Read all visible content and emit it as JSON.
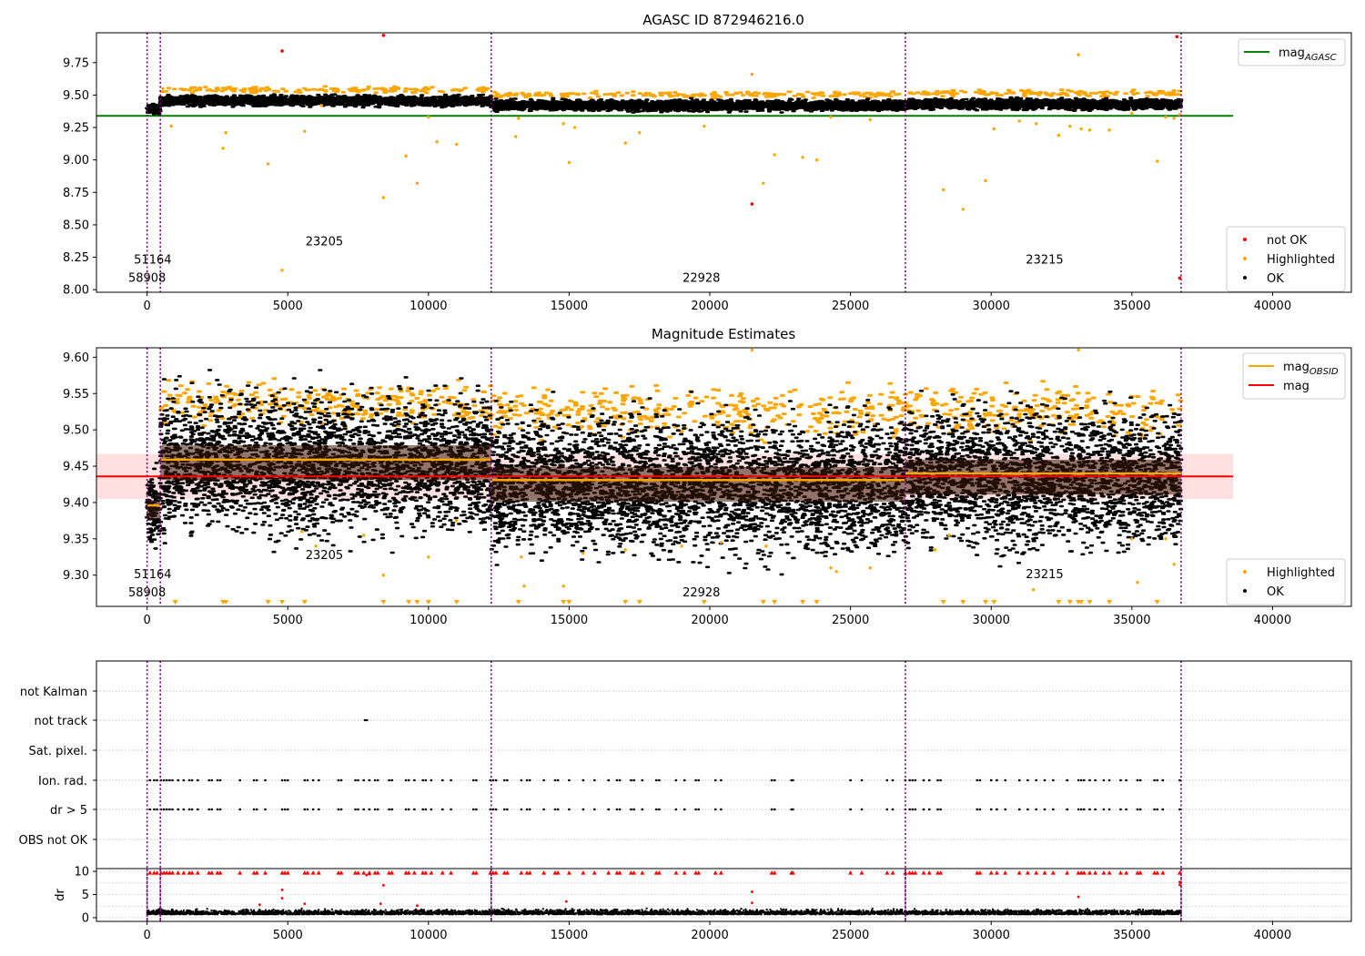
{
  "figure": {
    "title": "AGASC ID 872946216.0"
  },
  "colors": {
    "ok": "#000000",
    "highlighted": "#ffa500",
    "not_ok": "#ff0000",
    "agasc_line": "#008000",
    "mag_line": "#ff0000",
    "obsid_line": "#ffa500",
    "band": "#ffcccc",
    "obs_vline": "#800080",
    "grid": "#b0b0b0"
  },
  "chart_data": [
    {
      "id": "top",
      "type": "scatter",
      "title": "AGASC ID 872946216.0",
      "xlim": [
        -1800,
        42800
      ],
      "ylim": [
        7.98,
        9.98
      ],
      "xticks": [
        0,
        5000,
        10000,
        15000,
        20000,
        25000,
        30000,
        35000,
        40000
      ],
      "yticks": [
        8.0,
        8.25,
        8.5,
        8.75,
        9.0,
        9.25,
        9.5,
        9.75
      ],
      "ytick_labels": [
        "8.00",
        "8.25",
        "8.50",
        "8.75",
        "9.00",
        "9.25",
        "9.50",
        "9.75"
      ],
      "obs_boundaries": [
        0,
        470,
        12230,
        26950,
        36750
      ],
      "obsid_labels": [
        {
          "text": "51164",
          "x": 200,
          "y": 8.2
        },
        {
          "text": "58908",
          "x": 0,
          "y": 8.06
        },
        {
          "text": "23205",
          "x": 6300,
          "y": 8.34
        },
        {
          "text": "22928",
          "x": 19700,
          "y": 8.06
        },
        {
          "text": "23215",
          "x": 31900,
          "y": 8.2
        }
      ],
      "mag_agasc": {
        "value": 9.34,
        "x_range": [
          -1800,
          38600
        ]
      },
      "ok_band": [
        {
          "x0": 0,
          "x1": 470,
          "center": 9.39,
          "spread": 0.03
        },
        {
          "x0": 470,
          "x1": 12230,
          "center": 9.455,
          "spread": 0.035
        },
        {
          "x0": 12230,
          "x1": 26950,
          "center": 9.42,
          "spread": 0.035
        },
        {
          "x0": 26950,
          "x1": 36750,
          "center": 9.43,
          "spread": 0.035
        }
      ],
      "highlighted_points": [
        [
          560,
          9.55
        ],
        [
          860,
          9.26
        ],
        [
          2700,
          9.09
        ],
        [
          2800,
          9.21
        ],
        [
          4300,
          8.97
        ],
        [
          4800,
          8.15
        ],
        [
          5600,
          9.22
        ],
        [
          6200,
          9.42
        ],
        [
          8400,
          8.71
        ],
        [
          9200,
          9.03
        ],
        [
          9600,
          8.82
        ],
        [
          10000,
          9.33
        ],
        [
          10300,
          9.14
        ],
        [
          11000,
          9.12
        ],
        [
          13100,
          9.18
        ],
        [
          13200,
          9.32
        ],
        [
          14800,
          9.28
        ],
        [
          15000,
          8.98
        ],
        [
          15200,
          9.25
        ],
        [
          17000,
          9.13
        ],
        [
          17500,
          9.21
        ],
        [
          19800,
          9.26
        ],
        [
          21500,
          9.66
        ],
        [
          21900,
          8.82
        ],
        [
          22300,
          9.04
        ],
        [
          23300,
          9.02
        ],
        [
          23800,
          9.0
        ],
        [
          24300,
          9.33
        ],
        [
          25700,
          9.31
        ],
        [
          28300,
          8.77
        ],
        [
          29000,
          8.62
        ],
        [
          29800,
          8.84
        ],
        [
          30100,
          9.24
        ],
        [
          31000,
          9.3
        ],
        [
          31600,
          9.28
        ],
        [
          32400,
          9.19
        ],
        [
          32800,
          9.26
        ],
        [
          33100,
          9.81
        ],
        [
          33200,
          9.24
        ],
        [
          33500,
          9.23
        ],
        [
          34200,
          9.23
        ],
        [
          35000,
          9.36
        ],
        [
          35900,
          8.99
        ],
        [
          36200,
          9.33
        ],
        [
          36500,
          9.32
        ],
        [
          36700,
          9.35
        ]
      ],
      "not_ok_points": [
        [
          4800,
          9.84
        ],
        [
          8400,
          9.96
        ],
        [
          21500,
          8.66
        ],
        [
          36600,
          9.95
        ],
        [
          36700,
          8.09
        ]
      ],
      "legends": [
        {
          "position": "upper-right",
          "entries": [
            {
              "label": "mag",
              "sub": "AGASC",
              "marker": "line",
              "color": "#008000"
            }
          ]
        },
        {
          "position": "lower-right",
          "entries": [
            {
              "label": "not OK",
              "marker": "dot",
              "color": "#ff0000"
            },
            {
              "label": "Highlighted",
              "marker": "dot",
              "color": "#ffa500"
            },
            {
              "label": "OK",
              "marker": "dot",
              "color": "#000000"
            }
          ]
        }
      ]
    },
    {
      "id": "middle",
      "type": "scatter",
      "title": "Magnitude Estimates",
      "xlim": [
        -1800,
        42800
      ],
      "ylim": [
        9.257,
        9.613
      ],
      "xticks": [
        0,
        5000,
        10000,
        15000,
        20000,
        25000,
        30000,
        35000,
        40000
      ],
      "yticks": [
        9.3,
        9.35,
        9.4,
        9.45,
        9.5,
        9.55,
        9.6
      ],
      "ytick_labels": [
        "9.30",
        "9.35",
        "9.40",
        "9.45",
        "9.50",
        "9.55",
        "9.60"
      ],
      "obs_boundaries": [
        0,
        470,
        12230,
        26950,
        36750
      ],
      "obsid_labels": [
        {
          "text": "51164",
          "x": 200,
          "y": 9.296
        },
        {
          "text": "58908",
          "x": 0,
          "y": 9.271
        },
        {
          "text": "23205",
          "x": 6300,
          "y": 9.322
        },
        {
          "text": "22928",
          "x": 19700,
          "y": 9.271
        },
        {
          "text": "23215",
          "x": 31900,
          "y": 9.296
        }
      ],
      "mag": {
        "value": 9.436,
        "x_range": [
          -1800,
          38600
        ],
        "band": [
          9.405,
          9.467
        ]
      },
      "mag_obsid": [
        {
          "x0": 0,
          "x1": 470,
          "value": 9.396
        },
        {
          "x0": 470,
          "x1": 12230,
          "value": 9.459
        },
        {
          "x0": 12230,
          "x1": 26950,
          "value": 9.431
        },
        {
          "x0": 26950,
          "x1": 36750,
          "value": 9.44
        }
      ],
      "ok_band": [
        {
          "x0": 0,
          "x1": 470,
          "center": 9.39,
          "spread": 0.045
        },
        {
          "x0": 470,
          "x1": 12230,
          "center": 9.455,
          "spread": 0.08
        },
        {
          "x0": 12230,
          "x1": 26950,
          "center": 9.425,
          "spread": 0.08
        },
        {
          "x0": 26950,
          "x1": 36750,
          "center": 9.435,
          "spread": 0.08
        }
      ],
      "highlighted_band": [
        {
          "x0": 470,
          "x1": 12230,
          "center": 9.535,
          "spread": 0.025
        },
        {
          "x0": 12230,
          "x1": 26950,
          "center": 9.525,
          "spread": 0.03
        },
        {
          "x0": 26950,
          "x1": 36750,
          "center": 9.525,
          "spread": 0.03
        }
      ],
      "highlighted_points": [
        [
          5500,
          9.36
        ],
        [
          6000,
          9.34
        ],
        [
          7700,
          9.355
        ],
        [
          8400,
          9.3
        ],
        [
          10000,
          9.325
        ],
        [
          11000,
          9.375
        ],
        [
          13300,
          9.325
        ],
        [
          13400,
          9.285
        ],
        [
          14800,
          9.285
        ],
        [
          15500,
          9.33
        ],
        [
          17000,
          9.335
        ],
        [
          19000,
          9.34
        ],
        [
          20400,
          9.345
        ],
        [
          22000,
          9.34
        ],
        [
          24300,
          9.31
        ],
        [
          24500,
          9.305
        ],
        [
          25700,
          9.31
        ],
        [
          28000,
          9.335
        ],
        [
          28500,
          9.355
        ],
        [
          31500,
          9.28
        ],
        [
          35000,
          9.35
        ],
        [
          35200,
          9.29
        ],
        [
          36200,
          9.35
        ],
        [
          36500,
          9.315
        ],
        [
          21500,
          9.61
        ],
        [
          33100,
          9.61
        ]
      ],
      "lower_arrow_xs": [
        1000,
        2700,
        2800,
        4300,
        4800,
        5600,
        8400,
        9300,
        9600,
        10000,
        11000,
        13200,
        14800,
        15000,
        17000,
        17500,
        19800,
        21900,
        22300,
        23300,
        23800,
        28300,
        29000,
        29800,
        30100,
        32400,
        32800,
        33100,
        33200,
        33500,
        34200,
        35900
      ],
      "legends": [
        {
          "position": "upper-right",
          "entries": [
            {
              "label": "mag",
              "sub": "OBSID",
              "marker": "line",
              "color": "#ffa500"
            },
            {
              "label": "mag",
              "marker": "line",
              "color": "#ff0000"
            }
          ]
        },
        {
          "position": "lower-right",
          "entries": [
            {
              "label": "Highlighted",
              "marker": "dot",
              "color": "#ffa500"
            },
            {
              "label": "OK",
              "marker": "dot",
              "color": "#000000"
            }
          ]
        }
      ]
    },
    {
      "id": "flags",
      "type": "scatter",
      "xlim": [
        -1800,
        42800
      ],
      "ylabels": [
        "not Kalman",
        "not track",
        "Sat. pixel.",
        "Ion. rad.",
        "dr > 5",
        "OBS not OK"
      ],
      "obs_boundaries": [
        0,
        470,
        12230,
        26950,
        36750
      ],
      "not_track_points": [
        [
          7700,
          7850
        ]
      ],
      "flag_xs": [
        100,
        250,
        350,
        500,
        600,
        700,
        800,
        900,
        1100,
        1300,
        1500,
        1600,
        1800,
        2200,
        2300,
        2500,
        2600,
        3300,
        3800,
        3900,
        4200,
        4800,
        4900,
        5000,
        5600,
        5700,
        5900,
        6100,
        6800,
        6900,
        7400,
        7500,
        7700,
        7900,
        8100,
        8200,
        8600,
        8700,
        9200,
        9300,
        9500,
        9800,
        9900,
        10100,
        10500,
        10800,
        11600,
        11700,
        12200,
        12300,
        12400,
        12700,
        12800,
        13300,
        13500,
        13600,
        14100,
        14500,
        14600,
        15000,
        15500,
        15900,
        16400,
        16700,
        16800,
        17200,
        17300,
        17600,
        18100,
        18200,
        18800,
        19100,
        19500,
        19600,
        20200,
        20400,
        22200,
        22300,
        22900,
        22950,
        25000,
        25400,
        26300,
        26500,
        26950,
        27100,
        27200,
        27300,
        27600,
        27800,
        28100,
        28200,
        29500,
        29600,
        30000,
        30200,
        30500,
        31000,
        31300,
        31600,
        31900,
        32200,
        32700,
        33100,
        33200,
        33300,
        33500,
        33700,
        34000,
        34200,
        34600,
        34800,
        35200,
        35300,
        35800,
        35900,
        36100,
        36700
      ]
    },
    {
      "id": "dr",
      "type": "scatter",
      "xlim": [
        -1800,
        42800
      ],
      "ylim": [
        -0.8,
        10.6
      ],
      "ylabel": "dr",
      "yticks": [
        0,
        5,
        10
      ],
      "ytick_labels": [
        "0",
        "5",
        "10"
      ],
      "xticks": [
        0,
        5000,
        10000,
        15000,
        20000,
        25000,
        30000,
        35000,
        40000
      ],
      "obs_boundaries": [
        0,
        470,
        12230,
        26950,
        36750
      ],
      "ok_band": {
        "x0": 0,
        "x1": 36750,
        "center": 0.9,
        "spread": 0.5
      },
      "red_points": [
        [
          4000,
          2.8
        ],
        [
          4800,
          6.0
        ],
        [
          4800,
          4.2
        ],
        [
          5600,
          3.0
        ],
        [
          8400,
          7.0
        ],
        [
          8300,
          3.0
        ],
        [
          9600,
          2.6
        ],
        [
          14900,
          3.5
        ],
        [
          21500,
          5.6
        ],
        [
          21500,
          3.2
        ],
        [
          33100,
          4.5
        ],
        [
          36700,
          7.7
        ],
        [
          36700,
          7.1
        ],
        [
          7900,
          9.4
        ],
        [
          7800,
          9.2
        ]
      ]
    }
  ]
}
